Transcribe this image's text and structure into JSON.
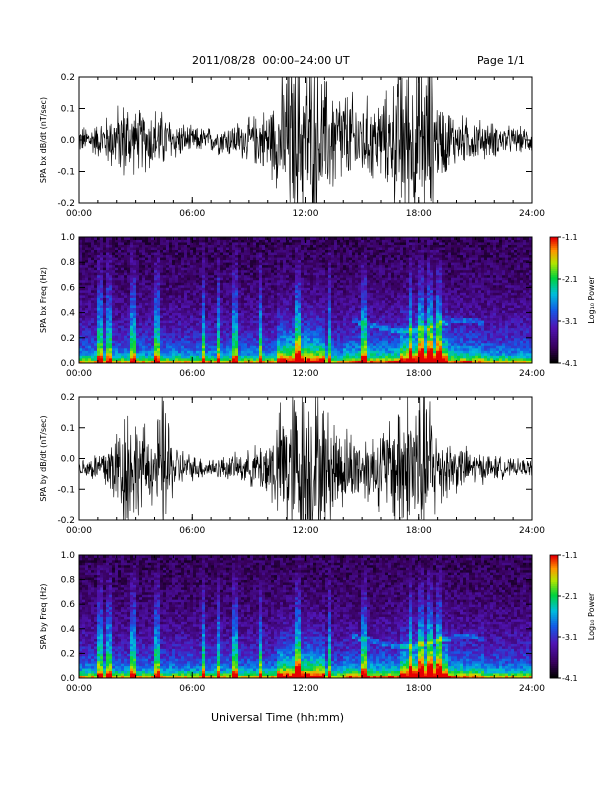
{
  "header": {
    "title": "2011/08/28  00:00–24:00 UT",
    "page": "Page 1/1"
  },
  "x_axis_title": "Universal Time (hh:mm)",
  "colorbar": {
    "label": "Log₁₀ Power",
    "ticks": [
      "-1.1",
      "-2.1",
      "-3.1",
      "-4.1"
    ],
    "range": [
      -4.1,
      -1.1
    ]
  },
  "chart_data": [
    {
      "type": "line",
      "ylabel": "SPA bx dB/dt (nT/sec)",
      "xlim": [
        0,
        24
      ],
      "ylim": [
        -0.2,
        0.2
      ],
      "xticks": [
        "00:00",
        "06:00",
        "12:00",
        "18:00",
        "24:00"
      ],
      "yticks": [
        "-0.2",
        "-0.1",
        "0.0",
        "0.1",
        "0.2"
      ],
      "envelope": {
        "x": [
          0,
          1,
          2,
          2.5,
          3,
          4,
          5,
          6,
          7,
          8,
          9,
          10,
          10.5,
          11,
          11.5,
          12,
          12.5,
          13,
          14,
          15,
          16,
          16.5,
          17,
          17.5,
          18,
          18.5,
          19,
          20,
          21,
          22,
          23,
          24
        ],
        "y": [
          0.03,
          0.04,
          0.08,
          0.1,
          0.07,
          0.08,
          0.05,
          0.03,
          0.03,
          0.04,
          0.05,
          0.08,
          0.11,
          0.2,
          0.2,
          0.2,
          0.2,
          0.15,
          0.12,
          0.1,
          0.1,
          0.12,
          0.2,
          0.2,
          0.2,
          0.2,
          0.1,
          0.06,
          0.05,
          0.04,
          0.03,
          0.03
        ]
      },
      "offset": 0.0
    },
    {
      "type": "heatmap",
      "ylabel": "SPA bx Freq (Hz)",
      "xlim": [
        0,
        24
      ],
      "ylim": [
        0,
        1.0
      ],
      "xticks": [
        "00:00",
        "06:00",
        "12:00",
        "18:00",
        "24:00"
      ],
      "yticks": [
        "0.0",
        "0.2",
        "0.4",
        "0.6",
        "0.8",
        "1.0"
      ],
      "value_range": [
        -4.1,
        -1.1
      ]
    },
    {
      "type": "line",
      "ylabel": "SPA by dB/dt (nT/sec)",
      "xlim": [
        0,
        24
      ],
      "ylim": [
        -0.2,
        0.2
      ],
      "xticks": [
        "00:00",
        "06:00",
        "12:00",
        "18:00",
        "24:00"
      ],
      "yticks": [
        "-0.2",
        "-0.1",
        "0.0",
        "0.1",
        "0.2"
      ],
      "envelope": {
        "x": [
          0,
          1,
          2,
          2.5,
          3,
          4,
          4.5,
          5,
          6,
          7,
          8,
          9,
          10,
          10.5,
          11,
          11.5,
          12,
          12.5,
          13,
          14,
          15,
          16,
          16.5,
          17,
          17.5,
          18,
          18.5,
          19,
          20,
          21,
          22,
          23,
          24
        ],
        "y": [
          0.02,
          0.04,
          0.1,
          0.18,
          0.12,
          0.08,
          0.2,
          0.06,
          0.03,
          0.025,
          0.03,
          0.04,
          0.08,
          0.12,
          0.2,
          0.2,
          0.2,
          0.2,
          0.15,
          0.1,
          0.08,
          0.1,
          0.12,
          0.2,
          0.2,
          0.2,
          0.2,
          0.1,
          0.06,
          0.04,
          0.03,
          0.02,
          0.02
        ]
      },
      "offset": -0.03
    },
    {
      "type": "heatmap",
      "ylabel": "SPA by Freq (Hz)",
      "xlim": [
        0,
        24
      ],
      "ylim": [
        0,
        1.0
      ],
      "xticks": [
        "00:00",
        "06:00",
        "12:00",
        "18:00",
        "24:00"
      ],
      "yticks": [
        "0.0",
        "0.2",
        "0.4",
        "0.6",
        "0.8",
        "1.0"
      ],
      "value_range": [
        -4.1,
        -1.1
      ]
    }
  ]
}
